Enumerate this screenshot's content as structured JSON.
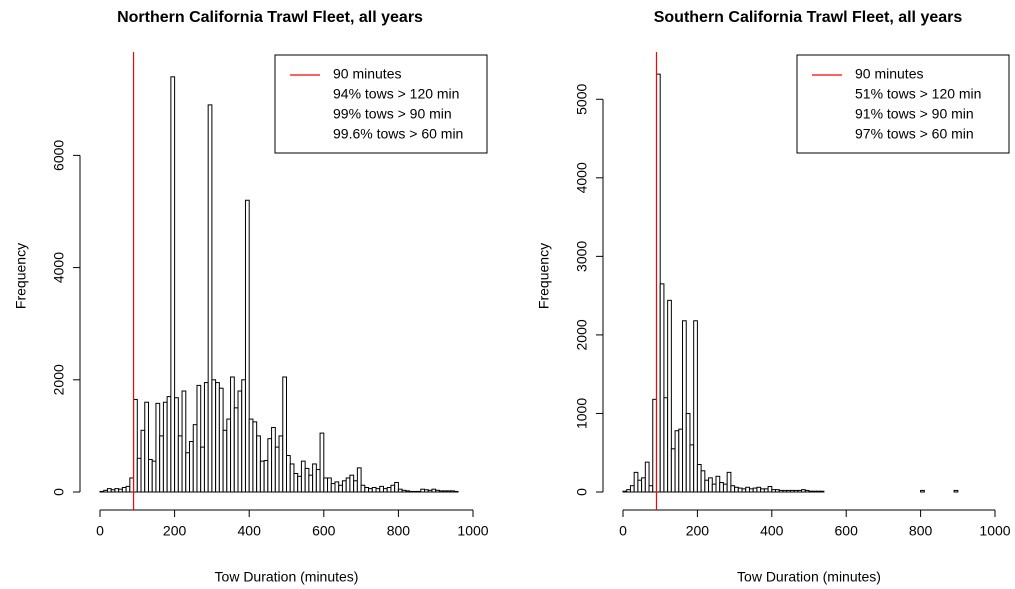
{
  "chart_data": [
    {
      "type": "histogram",
      "title": "Northern California Trawl Fleet, all years",
      "xlabel": "Tow Duration (minutes)",
      "ylabel": "Frequency",
      "bins": [
        0,
        10,
        20,
        30,
        40,
        50,
        60,
        70,
        80,
        90,
        100,
        110,
        120,
        130,
        140,
        150,
        160,
        170,
        180,
        190,
        200,
        210,
        220,
        230,
        240,
        250,
        260,
        270,
        280,
        290,
        300,
        310,
        320,
        330,
        340,
        350,
        360,
        370,
        380,
        390,
        400,
        410,
        420,
        430,
        440,
        450,
        460,
        470,
        480,
        490,
        500,
        510,
        520,
        530,
        540,
        550,
        560,
        570,
        580,
        590,
        600,
        610,
        620,
        630,
        640,
        650,
        660,
        670,
        680,
        690,
        700,
        710,
        720,
        730,
        740,
        750,
        760,
        770,
        780,
        790,
        800,
        810,
        820,
        830,
        840,
        850,
        860,
        870,
        880,
        890,
        900,
        910,
        920,
        930,
        940,
        950,
        960,
        970,
        980,
        990,
        1000
      ],
      "counts": [
        10,
        30,
        60,
        40,
        60,
        50,
        80,
        100,
        250,
        1650,
        600,
        1100,
        1600,
        580,
        550,
        1580,
        1000,
        1600,
        1700,
        7400,
        1680,
        1000,
        1800,
        700,
        900,
        1200,
        1900,
        800,
        1950,
        6900,
        2000,
        1950,
        1850,
        1100,
        1300,
        2050,
        1500,
        1800,
        2000,
        5200,
        1300,
        1250,
        1000,
        550,
        560,
        950,
        1150,
        800,
        1000,
        2050,
        650,
        500,
        330,
        280,
        550,
        420,
        300,
        500,
        400,
        1050,
        250,
        250,
        150,
        180,
        120,
        200,
        250,
        300,
        200,
        430,
        120,
        80,
        60,
        80,
        60,
        100,
        60,
        80,
        120,
        170,
        50,
        30,
        20,
        10,
        10,
        10,
        50,
        40,
        30,
        50,
        30,
        20,
        20,
        20,
        20,
        10,
        0,
        0,
        0,
        0
      ],
      "color": "#ffffff",
      "edgecolor": "#000000",
      "xlim": [
        0,
        1000
      ],
      "xticks": [
        0,
        200,
        400,
        600,
        800,
        1000
      ],
      "ylim": [
        0,
        7700
      ],
      "yticks": [
        0,
        2000,
        4000,
        6000
      ],
      "vline": {
        "x": 90,
        "label": "90 minutes",
        "color": "#ff0000"
      },
      "legend_notes": [
        "94% tows > 120 min",
        "99% tows > 90 min",
        "99.6% tows > 60 min"
      ],
      "legend": "top-right"
    },
    {
      "type": "histogram",
      "title": "Southern California Trawl Fleet, all years",
      "xlabel": "Tow Duration (minutes)",
      "ylabel": "Frequency",
      "bins": [
        0,
        10,
        20,
        30,
        40,
        50,
        60,
        70,
        80,
        90,
        100,
        110,
        120,
        130,
        140,
        150,
        160,
        170,
        180,
        190,
        200,
        210,
        220,
        230,
        240,
        250,
        260,
        270,
        280,
        290,
        300,
        310,
        320,
        330,
        340,
        350,
        360,
        370,
        380,
        390,
        400,
        410,
        420,
        430,
        440,
        450,
        460,
        470,
        480,
        490,
        500,
        510,
        520,
        530,
        540,
        550,
        560,
        570,
        580,
        590,
        600,
        610,
        620,
        630,
        640,
        650,
        660,
        670,
        680,
        690,
        700,
        710,
        720,
        730,
        740,
        750,
        760,
        770,
        780,
        790,
        800,
        810,
        820,
        830,
        840,
        850,
        860,
        870,
        880,
        890,
        900,
        910,
        920,
        930,
        940,
        950,
        960,
        970,
        980,
        990,
        1000
      ],
      "counts": [
        10,
        30,
        80,
        250,
        150,
        180,
        380,
        80,
        1180,
        5320,
        2650,
        1200,
        2440,
        550,
        780,
        800,
        2180,
        1000,
        600,
        2180,
        350,
        270,
        150,
        180,
        100,
        200,
        120,
        100,
        250,
        80,
        60,
        50,
        40,
        60,
        40,
        50,
        60,
        40,
        40,
        70,
        30,
        30,
        20,
        20,
        20,
        20,
        20,
        20,
        30,
        20,
        10,
        10,
        10,
        10,
        0,
        0,
        0,
        0,
        0,
        0,
        0,
        0,
        0,
        0,
        0,
        0,
        0,
        0,
        0,
        0,
        0,
        0,
        0,
        0,
        0,
        0,
        0,
        0,
        0,
        0,
        20,
        0,
        0,
        0,
        0,
        0,
        0,
        0,
        0,
        20,
        0,
        0,
        0,
        0,
        0,
        0,
        0,
        0,
        0,
        0
      ],
      "color": "#ffffff",
      "edgecolor": "#000000",
      "xlim": [
        0,
        1000
      ],
      "xticks": [
        0,
        200,
        400,
        600,
        800,
        1000
      ],
      "ylim": [
        0,
        5500
      ],
      "yticks": [
        0,
        1000,
        2000,
        3000,
        4000,
        5000
      ],
      "vline": {
        "x": 90,
        "label": "90 minutes",
        "color": "#ff0000"
      },
      "legend_notes": [
        "51% tows > 120 min",
        "91% tows > 90 min",
        "97% tows > 60 min"
      ],
      "legend": "top-right"
    }
  ]
}
